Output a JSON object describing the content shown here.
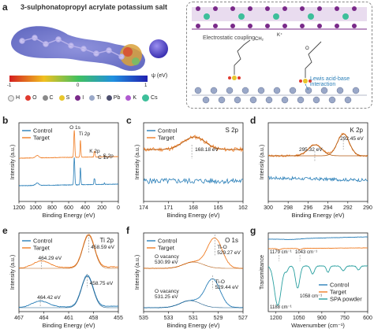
{
  "panels": {
    "a": {
      "label": "a",
      "title": "3-sulphonatopropyl acrylate potassium salt",
      "scale_unit": "ψ (eV)",
      "scale_ticks": [
        "-1",
        "0",
        "1"
      ],
      "legend": [
        {
          "sym": "H",
          "color": "#e8e8e8"
        },
        {
          "sym": "O",
          "color": "#e03a2f"
        },
        {
          "sym": "C",
          "color": "#8a8a8a"
        },
        {
          "sym": "S",
          "color": "#e8c62c"
        },
        {
          "sym": "I",
          "color": "#7a2a8a"
        },
        {
          "sym": "Ti",
          "color": "#9aa8c8"
        },
        {
          "sym": "Pb",
          "color": "#4d4f6e"
        },
        {
          "sym": "K",
          "color": "#b05ad0"
        },
        {
          "sym": "Cs",
          "color": "#3dbf9a"
        }
      ],
      "schematic_labels": {
        "electrostatic": "Electrostatic coupling",
        "lewis": "Lewis acid-base interaction",
        "k_plus": "K⁺",
        "ch2": "CH₂",
        "o": "O"
      }
    },
    "b": {
      "label": "b",
      "legend": [
        "Control",
        "Target"
      ],
      "peaks": [
        "O 1s",
        "Ti 2p",
        "K 2p",
        "C 1s",
        "S 2p"
      ],
      "xlabel": "Binding Energy (eV)",
      "ylabel": "Intensity (a.u.)",
      "xticks": [
        "1200",
        "1000",
        "800",
        "600",
        "400",
        "200",
        "0"
      ]
    },
    "c": {
      "label": "c",
      "legend": [
        "Control",
        "Target"
      ],
      "element": "S 2p",
      "peak": "168.18 eV",
      "xlabel": "Binding Energy (eV)",
      "ylabel": "Intensity (a.u.)",
      "xticks": [
        "174",
        "171",
        "168",
        "165",
        "162"
      ]
    },
    "d": {
      "label": "d",
      "element": "K 2p",
      "peak1": "295.32 eV",
      "peak2": "292.45 eV",
      "xlabel": "Binding Energy (eV)",
      "ylabel": "Intensity (a.u.)",
      "xticks": [
        "300",
        "298",
        "296",
        "294",
        "292",
        "290"
      ]
    },
    "e": {
      "label": "e",
      "legend": [
        "Control",
        "Target"
      ],
      "element": "Ti 2p",
      "t1": "458.59 eV",
      "t2": "464.29 eV",
      "c1": "458.75 eV",
      "c2": "464.42 eV",
      "xlabel": "Binding Energy (eV)",
      "ylabel": "Intensity (a.u.)",
      "xticks": [
        "467",
        "464",
        "461",
        "458",
        "455"
      ]
    },
    "f": {
      "label": "f",
      "legend": [
        "Control",
        "Target"
      ],
      "element": "O 1s",
      "t_tio": "Ti-O",
      "t_tio_val": "529.27 eV",
      "t_vac": "O vacancy",
      "t_vac_val": "530.99 eV",
      "c_tio": "Ti-O",
      "c_tio_val": "529.44 eV",
      "c_vac": "O vacancy",
      "c_vac_val": "531.25 eV",
      "xlabel": "Binding Energy (eV)",
      "ylabel": "Intensity (a.u.)",
      "xticks": [
        "535",
        "533",
        "531",
        "529",
        "527"
      ]
    },
    "g": {
      "label": "g",
      "ann1": "1179 cm⁻¹",
      "ann2": "1043 cm⁻¹",
      "ann3": "1188 cm⁻¹",
      "ann4": "1058 cm⁻¹",
      "legend": [
        "Control",
        "Target",
        "SPA powder"
      ],
      "xlabel": "Wavenumber (cm⁻¹)",
      "ylabel": "Transmittance",
      "xticks": [
        "1200",
        "1050",
        "900",
        "750",
        "600"
      ]
    }
  },
  "colors": {
    "control": "#2a7fb8",
    "target": "#f07e26",
    "spa": "#2aa0a0"
  },
  "chart_data": [
    {
      "type": "line",
      "panel": "b",
      "xlabel": "Binding Energy (eV)",
      "ylabel": "Intensity (a.u.)",
      "xlim": [
        1200,
        0
      ],
      "series": [
        {
          "name": "Control",
          "x": [
            1200,
            1000,
            800,
            600,
            540,
            532,
            525,
            470,
            458,
            450,
            300,
            293,
            285,
            280,
            170,
            0
          ],
          "y": [
            0.18,
            0.19,
            0.2,
            0.21,
            0.22,
            0.95,
            0.3,
            0.28,
            0.6,
            0.3,
            0.24,
            0.3,
            0.32,
            0.25,
            0.23,
            0.22
          ]
        },
        {
          "name": "Target",
          "x": [
            1200,
            1000,
            800,
            600,
            540,
            532,
            525,
            470,
            458,
            450,
            300,
            293,
            285,
            280,
            170,
            0
          ],
          "y": [
            0.55,
            0.56,
            0.57,
            0.6,
            0.62,
            1.0,
            0.68,
            0.66,
            0.88,
            0.66,
            0.64,
            0.72,
            0.72,
            0.63,
            0.61,
            0.6
          ]
        }
      ]
    },
    {
      "type": "line",
      "panel": "c",
      "xlabel": "Binding Energy (eV)",
      "ylabel": "Intensity (a.u.)",
      "xlim": [
        174,
        162
      ],
      "series": [
        {
          "name": "Control",
          "x": [
            174,
            171,
            168,
            165,
            162
          ],
          "y": [
            0.25,
            0.24,
            0.25,
            0.24,
            0.25
          ]
        },
        {
          "name": "Target",
          "x": [
            174,
            171,
            169,
            168.18,
            167,
            165,
            162
          ],
          "y": [
            0.62,
            0.63,
            0.75,
            0.82,
            0.74,
            0.63,
            0.61
          ]
        }
      ]
    },
    {
      "type": "line",
      "panel": "d",
      "xlabel": "Binding Energy (eV)",
      "ylabel": "Intensity (a.u.)",
      "xlim": [
        300,
        290
      ],
      "series": [
        {
          "name": "Control",
          "x": [
            300,
            298,
            296,
            294,
            292,
            290
          ],
          "y": [
            0.3,
            0.29,
            0.29,
            0.28,
            0.27,
            0.27
          ]
        },
        {
          "name": "Target",
          "x": [
            300,
            298,
            296,
            295.32,
            294,
            293,
            292.45,
            291,
            290
          ],
          "y": [
            0.6,
            0.6,
            0.7,
            0.8,
            0.65,
            0.85,
            1.0,
            0.65,
            0.58
          ]
        }
      ]
    },
    {
      "type": "line",
      "panel": "e",
      "xlabel": "Binding Energy (eV)",
      "ylabel": "Intensity (a.u.)",
      "xlim": [
        467,
        455
      ],
      "series": [
        {
          "name": "Control",
          "x": [
            467,
            465,
            464.42,
            463,
            461,
            459.5,
            458.75,
            457.5,
            456,
            455
          ],
          "y": [
            0.05,
            0.1,
            0.14,
            0.1,
            0.07,
            0.2,
            0.45,
            0.15,
            0.05,
            0.04
          ]
        },
        {
          "name": "Target",
          "x": [
            467,
            465,
            464.29,
            463,
            461,
            459.5,
            458.59,
            457.5,
            456,
            455
          ],
          "y": [
            0.55,
            0.6,
            0.65,
            0.6,
            0.57,
            0.72,
            1.0,
            0.65,
            0.55,
            0.54
          ]
        }
      ]
    },
    {
      "type": "line",
      "panel": "f",
      "xlabel": "Binding Energy (eV)",
      "ylabel": "Intensity (a.u.)",
      "xlim": [
        535,
        527
      ],
      "series": [
        {
          "name": "Control",
          "x": [
            535,
            533,
            531.25,
            530,
            529.44,
            528.5,
            527
          ],
          "y": [
            0.05,
            0.06,
            0.14,
            0.3,
            0.45,
            0.15,
            0.05
          ]
        },
        {
          "name": "Target",
          "x": [
            535,
            533,
            530.99,
            530,
            529.27,
            528.5,
            527
          ],
          "y": [
            0.55,
            0.56,
            0.62,
            0.8,
            1.0,
            0.7,
            0.55
          ]
        }
      ]
    },
    {
      "type": "line",
      "panel": "g",
      "xlabel": "Wavenumber (cm⁻¹)",
      "ylabel": "Transmittance",
      "xlim": [
        1250,
        600
      ],
      "series": [
        {
          "name": "Control",
          "x": [
            1250,
            1100,
            1000,
            900,
            800,
            700,
            600
          ],
          "y": [
            0.88,
            0.89,
            0.9,
            0.91,
            0.92,
            0.94,
            0.96
          ]
        },
        {
          "name": "Target",
          "x": [
            1250,
            1179,
            1100,
            1043,
            1000,
            900,
            800,
            700,
            600
          ],
          "y": [
            0.74,
            0.72,
            0.74,
            0.71,
            0.74,
            0.75,
            0.75,
            0.76,
            0.76
          ]
        },
        {
          "name": "SPA powder",
          "x": [
            1250,
            1188,
            1150,
            1100,
            1058,
            1000,
            950,
            900,
            850,
            800,
            750,
            700,
            650,
            600
          ],
          "y": [
            0.55,
            0.1,
            0.4,
            0.42,
            0.25,
            0.5,
            0.42,
            0.52,
            0.45,
            0.5,
            0.47,
            0.52,
            0.5,
            0.55
          ]
        }
      ]
    }
  ]
}
